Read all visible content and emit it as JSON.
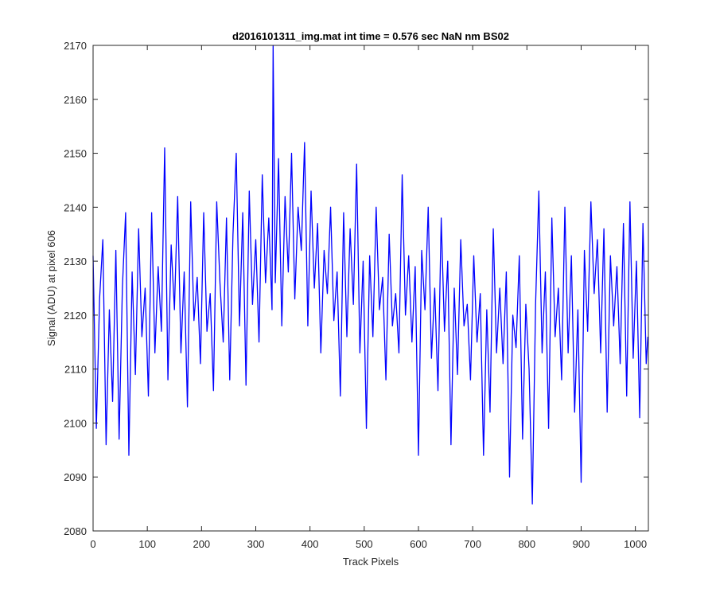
{
  "figure": {
    "background": "#ffffff"
  },
  "chart_data": {
    "type": "line",
    "title": "d2016101311_img.mat int time = 0.576 sec  NaN nm BS02",
    "xlabel": "Track Pixels",
    "ylabel": "Signal (ADU) at pixel 606",
    "xlim": [
      0,
      1024
    ],
    "ylim": [
      2080,
      2170
    ],
    "xticks": [
      0,
      100,
      200,
      300,
      400,
      500,
      600,
      700,
      800,
      900,
      1000
    ],
    "yticks": [
      2080,
      2090,
      2100,
      2110,
      2120,
      2130,
      2140,
      2150,
      2160,
      2170
    ],
    "grid": false,
    "line_color": "#0000ff",
    "series": [
      {
        "x": [
          0,
          6,
          12,
          18,
          24,
          30,
          36,
          42,
          48,
          54,
          60,
          66,
          72,
          78,
          84,
          90,
          96,
          102,
          108,
          114,
          120,
          126,
          132,
          138,
          144,
          150,
          156,
          162,
          168,
          174,
          180,
          186,
          192,
          198,
          204,
          210,
          216,
          222,
          228,
          234,
          240,
          246,
          252,
          258,
          264,
          270,
          276,
          282,
          288,
          294,
          300,
          306,
          312,
          318,
          324,
          330,
          332,
          336,
          342,
          348,
          354,
          360,
          366,
          372,
          378,
          384,
          390,
          396,
          402,
          408,
          414,
          420,
          426,
          432,
          438,
          444,
          450,
          456,
          462,
          468,
          474,
          480,
          486,
          492,
          498,
          504,
          510,
          516,
          522,
          528,
          534,
          540,
          546,
          552,
          558,
          564,
          570,
          576,
          582,
          588,
          594,
          600,
          606,
          612,
          618,
          624,
          630,
          636,
          642,
          648,
          654,
          660,
          666,
          672,
          678,
          684,
          690,
          696,
          702,
          708,
          714,
          720,
          726,
          732,
          738,
          744,
          750,
          756,
          762,
          768,
          774,
          780,
          786,
          792,
          798,
          804,
          810,
          816,
          822,
          828,
          834,
          840,
          846,
          852,
          858,
          864,
          870,
          876,
          882,
          888,
          894,
          900,
          906,
          912,
          918,
          924,
          930,
          936,
          942,
          948,
          954,
          960,
          966,
          972,
          978,
          984,
          990,
          996,
          1002,
          1008,
          1014,
          1020,
          1023
        ],
        "y": [
          2131,
          2099,
          2123,
          2134,
          2096,
          2121,
          2104,
          2132,
          2097,
          2125,
          2139,
          2094,
          2128,
          2109,
          2136,
          2116,
          2125,
          2105,
          2139,
          2113,
          2129,
          2117,
          2151,
          2108,
          2133,
          2121,
          2142,
          2113,
          2128,
          2103,
          2141,
          2119,
          2127,
          2111,
          2139,
          2117,
          2124,
          2106,
          2141,
          2126,
          2115,
          2138,
          2108,
          2135,
          2150,
          2118,
          2139,
          2107,
          2143,
          2122,
          2134,
          2115,
          2146,
          2126,
          2138,
          2121,
          2170,
          2126,
          2149,
          2118,
          2142,
          2128,
          2150,
          2123,
          2140,
          2132,
          2152,
          2118,
          2143,
          2125,
          2137,
          2113,
          2132,
          2124,
          2140,
          2119,
          2128,
          2105,
          2139,
          2116,
          2136,
          2122,
          2148,
          2113,
          2130,
          2099,
          2131,
          2116,
          2140,
          2121,
          2127,
          2108,
          2135,
          2118,
          2124,
          2113,
          2146,
          2120,
          2131,
          2115,
          2129,
          2094,
          2132,
          2121,
          2140,
          2112,
          2125,
          2106,
          2138,
          2117,
          2130,
          2096,
          2125,
          2109,
          2134,
          2118,
          2122,
          2108,
          2131,
          2115,
          2124,
          2094,
          2121,
          2102,
          2136,
          2113,
          2125,
          2111,
          2128,
          2090,
          2120,
          2114,
          2131,
          2097,
          2122,
          2110,
          2085,
          2122,
          2143,
          2113,
          2128,
          2099,
          2138,
          2116,
          2125,
          2108,
          2140,
          2113,
          2131,
          2102,
          2121,
          2089,
          2132,
          2117,
          2141,
          2124,
          2134,
          2113,
          2136,
          2102,
          2131,
          2118,
          2129,
          2111,
          2137,
          2105,
          2141,
          2112,
          2130,
          2101,
          2137,
          2111,
          2116
        ]
      }
    ]
  }
}
